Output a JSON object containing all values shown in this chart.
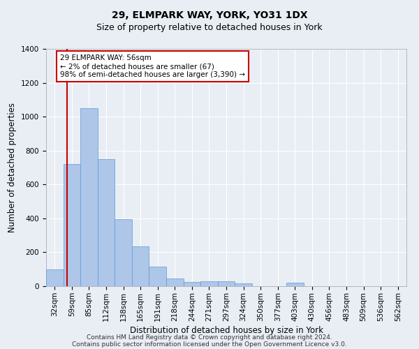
{
  "title1": "29, ELMPARK WAY, YORK, YO31 1DX",
  "title2": "Size of property relative to detached houses in York",
  "xlabel": "Distribution of detached houses by size in York",
  "ylabel": "Number of detached properties",
  "annotation_title": "29 ELMPARK WAY: 56sqm",
  "annotation_line1": "← 2% of detached houses are smaller (67)",
  "annotation_line2": "98% of semi-detached houses are larger (3,390) →",
  "footer1": "Contains HM Land Registry data © Crown copyright and database right 2024.",
  "footer2": "Contains public sector information licensed under the Open Government Licence v3.0.",
  "categories": [
    "32sqm",
    "59sqm",
    "85sqm",
    "112sqm",
    "138sqm",
    "165sqm",
    "191sqm",
    "218sqm",
    "244sqm",
    "271sqm",
    "297sqm",
    "324sqm",
    "350sqm",
    "377sqm",
    "403sqm",
    "430sqm",
    "456sqm",
    "483sqm",
    "509sqm",
    "536sqm",
    "562sqm"
  ],
  "values": [
    100,
    720,
    1050,
    750,
    395,
    235,
    115,
    45,
    25,
    28,
    28,
    18,
    0,
    0,
    20,
    0,
    0,
    0,
    0,
    0,
    0
  ],
  "bar_color": "#aec6e8",
  "bar_edge_color": "#5b9bd5",
  "bar_width": 1.0,
  "red_line_x": 0.72,
  "ylim": [
    0,
    1400
  ],
  "yticks": [
    0,
    200,
    400,
    600,
    800,
    1000,
    1200,
    1400
  ],
  "background_color": "#e8eef4",
  "plot_background": "#e8eef4",
  "grid_color": "#ffffff",
  "annotation_box_facecolor": "#ffffff",
  "annotation_border_color": "#cc0000",
  "title1_fontsize": 10,
  "title2_fontsize": 9,
  "axis_label_fontsize": 8.5,
  "tick_fontsize": 7.5,
  "annotation_fontsize": 7.5,
  "footer_fontsize": 6.5
}
